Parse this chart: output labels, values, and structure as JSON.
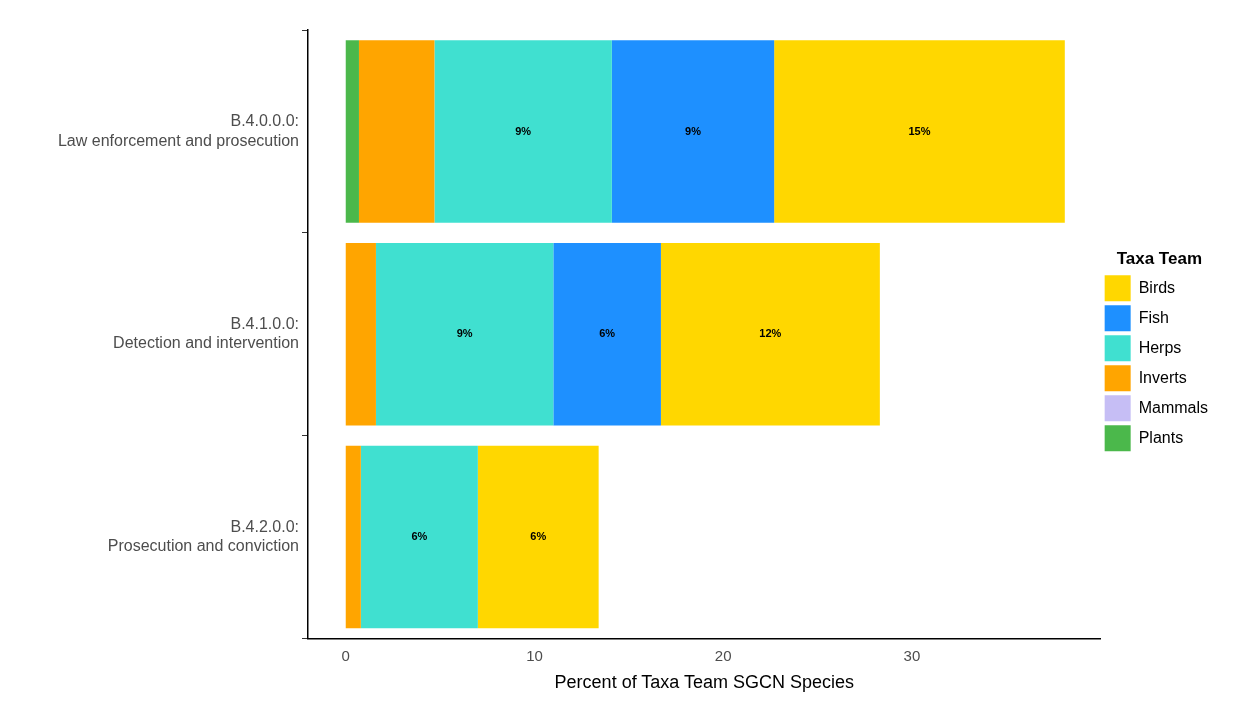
{
  "chart_data": {
    "type": "bar",
    "orientation": "horizontal",
    "stacked": true,
    "xlabel": "Percent of Taxa Team SGCN Species",
    "legend_title": "Taxa Team",
    "legend": "right",
    "grid": false,
    "categories": [
      "B.4.0.0.0:\nLaw enforcement and prosecution",
      "B.4.1.0.0:\nDetection and intervention",
      "B.4.2.0.0:\nProsecution and conviction"
    ],
    "xlim": [
      -2,
      40
    ],
    "xticks": [
      0,
      10,
      20,
      30
    ],
    "series": [
      {
        "name": "Plants",
        "color": "#4bb84b",
        "values": [
          0.7,
          0,
          0
        ],
        "value_labels": [
          null,
          null,
          null
        ]
      },
      {
        "name": "Mammals",
        "color": "#c6bef5",
        "values": [
          0,
          0,
          0
        ],
        "value_labels": [
          null,
          null,
          null
        ]
      },
      {
        "name": "Inverts",
        "color": "#ffa500",
        "values": [
          4.0,
          1.6,
          0.8
        ],
        "value_labels": [
          null,
          null,
          null
        ]
      },
      {
        "name": "Herps",
        "color": "#40e0d0",
        "values": [
          9.4,
          9.4,
          6.2
        ],
        "value_labels": [
          "9%",
          "9%",
          "6%"
        ]
      },
      {
        "name": "Fish",
        "color": "#1e90ff",
        "values": [
          8.6,
          5.7,
          0
        ],
        "value_labels": [
          "9%",
          "6%",
          null
        ]
      },
      {
        "name": "Birds",
        "color": "#ffd700",
        "values": [
          15.4,
          11.6,
          6.4
        ],
        "value_labels": [
          "15%",
          "12%",
          "6%"
        ]
      }
    ]
  }
}
